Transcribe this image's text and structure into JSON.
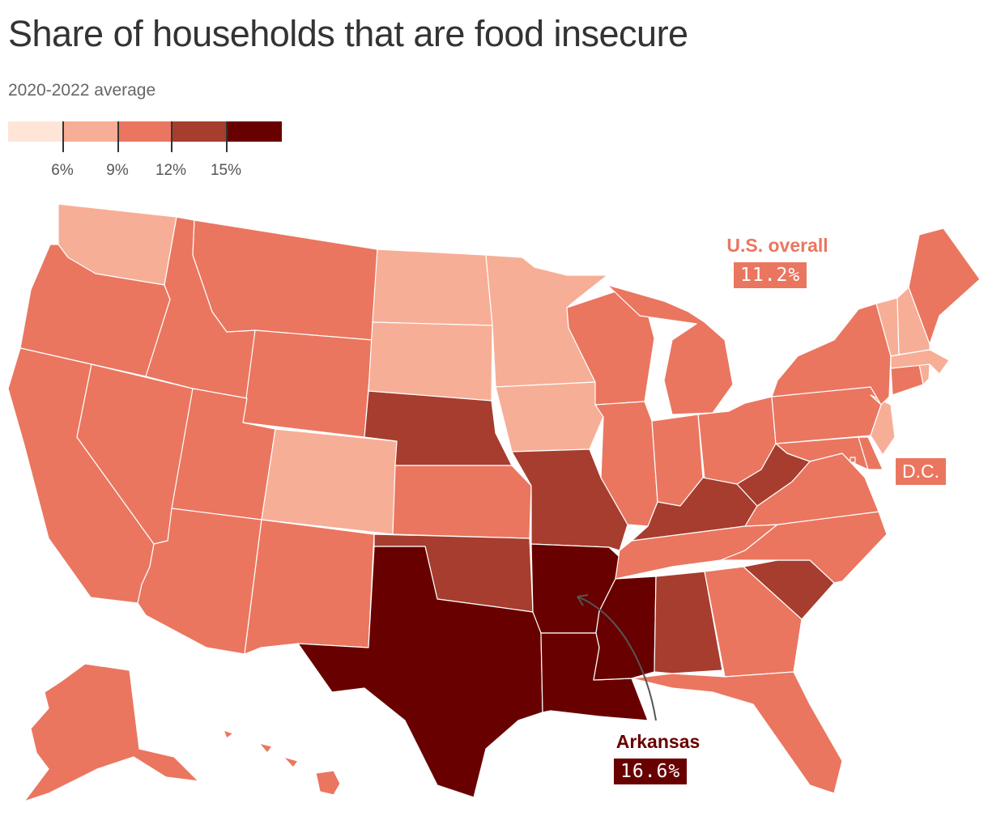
{
  "title": "Share of households that are food insecure",
  "subtitle": "2020-2022 average",
  "colors": {
    "bin1": "#fee5d8",
    "bin2": "#f7ae96",
    "bin3": "#ea7660",
    "bin4": "#a63d2e",
    "bin5": "#690000"
  },
  "legend": {
    "ticks": [
      "6%",
      "9%",
      "12%",
      "15%"
    ]
  },
  "callouts": {
    "us_label": "U.S. overall",
    "us_value": "11.2%",
    "dc_label": "D.C.",
    "ar_label": "Arkansas",
    "ar_value": "16.6%"
  },
  "state_bins": {
    "WA": 2,
    "OR": 3,
    "CA": 3,
    "NV": 3,
    "ID": 3,
    "MT": 3,
    "WY": 3,
    "UT": 3,
    "CO": 2,
    "AZ": 3,
    "NM": 3,
    "ND": 2,
    "SD": 2,
    "NE": 4,
    "KS": 3,
    "OK": 4,
    "TX": 5,
    "MN": 2,
    "IA": 2,
    "MO": 4,
    "AR": 5,
    "LA": 5,
    "WI": 3,
    "IL": 3,
    "MI": 3,
    "IN": 3,
    "OH": 3,
    "KY": 4,
    "TN": 3,
    "MS": 5,
    "AL": 4,
    "GA": 3,
    "FL": 3,
    "SC": 4,
    "NC": 3,
    "VA": 3,
    "WV": 4,
    "MD": 3,
    "DE": 3,
    "PA": 3,
    "NJ": 2,
    "NY": 3,
    "CT": 3,
    "RI": 2,
    "MA": 2,
    "VT": 2,
    "NH": 2,
    "ME": 3,
    "AK": 3,
    "HI": 3,
    "DC": 3
  }
}
